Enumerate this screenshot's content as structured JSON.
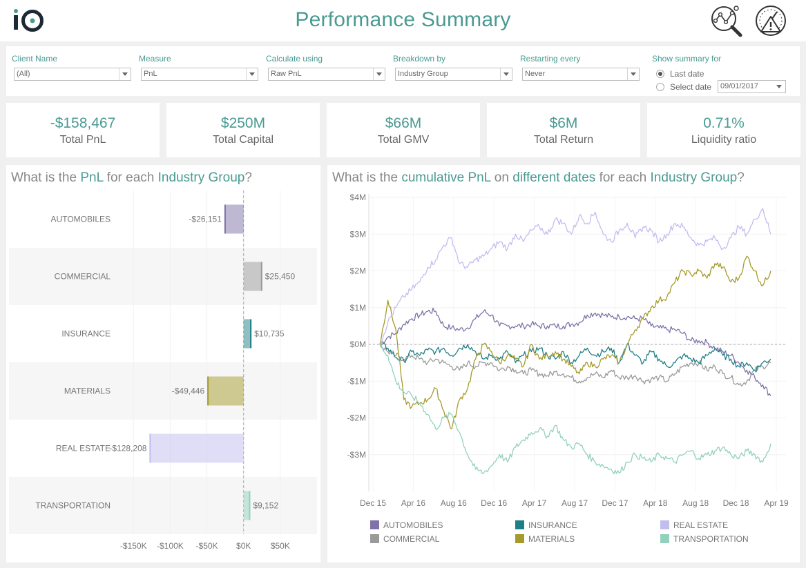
{
  "header": {
    "logo_text": "iO",
    "title": "Performance Summary",
    "icons": [
      "analytics-search-icon",
      "gauge-alert-icon"
    ]
  },
  "filters": {
    "client_name": {
      "label": "Client Name",
      "value": "(All)"
    },
    "measure": {
      "label": "Measure",
      "value": "PnL"
    },
    "calculate_using": {
      "label": "Calculate using",
      "value": "Raw PnL"
    },
    "breakdown_by": {
      "label": "Breakdown by",
      "value": "Industry Group"
    },
    "restarting_every": {
      "label": "Restarting every",
      "value": "Never"
    },
    "show_summary": {
      "label": "Show summary for",
      "option_last": "Last date",
      "option_select": "Select date",
      "date_value": "09/01/2017",
      "selected": "last"
    }
  },
  "kpis": [
    {
      "value": "-$158,467",
      "label": "Total PnL"
    },
    {
      "value": "$250M",
      "label": "Total Capital"
    },
    {
      "value": "$66M",
      "label": "Total GMV"
    },
    {
      "value": "$6M",
      "label": "Total Return"
    },
    {
      "value": "0.71%",
      "label": "Liquidity ratio"
    }
  ],
  "bar_panel": {
    "title_parts": [
      "What is the ",
      "PnL",
      " for each ",
      "Industry Group",
      "?"
    ]
  },
  "line_panel": {
    "title_parts": [
      "What is the ",
      "cumulative PnL",
      " on ",
      "different dates",
      " for each ",
      "Industry Group",
      "?"
    ]
  },
  "colors": {
    "AUTOMOBILES": "#7e72a8",
    "COMMERCIAL": "#9a9a9a",
    "INSURANCE": "#1f7f86",
    "MATERIALS": "#a69a2b",
    "REAL ESTATE": "#c2bdf0",
    "TRANSPORTATION": "#93d1bd"
  },
  "chart_data": [
    {
      "type": "bar",
      "orientation": "horizontal",
      "categories": [
        "AUTOMOBILES",
        "COMMERCIAL",
        "INSURANCE",
        "MATERIALS",
        "REAL ESTATE",
        "TRANSPORTATION"
      ],
      "values": [
        -26151,
        25450,
        10735,
        -49446,
        -128208,
        9152
      ],
      "value_labels": [
        "-$26,151",
        "$25,450",
        "$10,735",
        "-$49,446",
        "-$128,208",
        "$9,152"
      ],
      "xticks": [
        -150000,
        -100000,
        -50000,
        0,
        50000
      ],
      "xtick_labels": [
        "-$150K",
        "-$100K",
        "-$50K",
        "$0K",
        "$50K"
      ],
      "xlim": [
        -170000,
        100000
      ]
    },
    {
      "type": "line",
      "x_range": [
        "2015-12",
        "2019-04"
      ],
      "xticks": [
        "Dec 15",
        "Apr 16",
        "Aug 16",
        "Dec 16",
        "Apr 17",
        "Aug 17",
        "Dec 17",
        "Apr 18",
        "Aug 18",
        "Dec 18",
        "Apr 19"
      ],
      "ylim": [
        -4,
        4
      ],
      "yticks": [
        4,
        3,
        2,
        1,
        0,
        -1,
        -2,
        -3
      ],
      "ytick_labels": [
        "$4M",
        "$3M",
        "$2M",
        "$1M",
        "$0M",
        "-$1M",
        "-$2M",
        "-$3M"
      ],
      "y_unit": "$M",
      "legend": [
        "AUTOMOBILES",
        "INSURANCE",
        "REAL ESTATE",
        "COMMERCIAL",
        "MATERIALS",
        "TRANSPORTATION"
      ],
      "series": [
        {
          "name": "AUTOMOBILES",
          "values": [
            0.0,
            0.2,
            0.3,
            0.55,
            0.7,
            0.8,
            0.9,
            0.9,
            0.5,
            0.45,
            0.4,
            0.45,
            0.7,
            0.9,
            0.8,
            0.5,
            0.5,
            0.5,
            0.5,
            0.55,
            0.5,
            0.5,
            0.5,
            0.5,
            0.55,
            0.6,
            0.8,
            0.85,
            0.8,
            0.75,
            0.75,
            0.75,
            0.7,
            0.7,
            0.5,
            0.45,
            0.4,
            0.4,
            0.3,
            0.1,
            0.1,
            0.05,
            -0.1,
            -0.2,
            -0.3,
            -0.5,
            -0.7,
            -0.9,
            -1.1,
            -1.4
          ]
        },
        {
          "name": "COMMERCIAL",
          "values": [
            0.0,
            -0.2,
            -0.3,
            -0.4,
            -0.3,
            -0.4,
            -0.5,
            -0.4,
            -0.5,
            -0.6,
            -0.7,
            -0.5,
            -0.6,
            -0.5,
            -0.5,
            -0.7,
            -0.6,
            -0.7,
            -0.8,
            -0.7,
            -0.8,
            -0.85,
            -0.75,
            -0.8,
            -0.9,
            -1.0,
            -0.9,
            -0.8,
            -0.9,
            -0.7,
            -0.9,
            -0.9,
            -0.85,
            -1.0,
            -0.95,
            -0.9,
            -1.0,
            -0.8,
            -0.6,
            -0.5,
            -0.5,
            -0.7,
            -0.6,
            -0.8,
            -0.9,
            -1.1,
            -1.0,
            -0.7,
            -0.6,
            -0.5
          ]
        },
        {
          "name": "INSURANCE",
          "values": [
            0.0,
            -0.1,
            -0.35,
            -0.45,
            -0.2,
            -0.3,
            -0.15,
            -0.2,
            -0.1,
            -0.3,
            -0.1,
            0.0,
            -0.2,
            -0.4,
            -0.3,
            -0.4,
            -0.2,
            -0.5,
            -0.3,
            -0.2,
            -0.1,
            -0.3,
            -0.4,
            -0.2,
            -0.5,
            -0.3,
            -0.1,
            -0.3,
            -0.2,
            -0.1,
            -0.5,
            0.0,
            -0.3,
            -0.5,
            -0.2,
            -0.4,
            -0.6,
            -0.5,
            -0.3,
            -0.4,
            -0.5,
            -0.3,
            -0.1,
            -0.3,
            -0.4,
            -0.6,
            -0.5,
            -0.7,
            -0.5,
            -0.4
          ]
        },
        {
          "name": "MATERIALS",
          "values": [
            0.0,
            1.2,
            0.4,
            -1.5,
            -1.7,
            -1.6,
            -1.5,
            -1.2,
            -1.8,
            -2.3,
            -1.5,
            -1.2,
            -0.4,
            0.0,
            -0.2,
            -0.5,
            -0.3,
            -0.4,
            -0.6,
            0.0,
            -0.4,
            -0.3,
            -0.2,
            -0.4,
            -0.6,
            -0.8,
            -0.5,
            -0.6,
            -0.4,
            -0.3,
            -0.5,
            0.0,
            0.4,
            0.7,
            1.0,
            1.2,
            1.3,
            1.7,
            2.0,
            1.9,
            2.0,
            1.8,
            2.2,
            2.1,
            1.7,
            1.8,
            2.4,
            2.0,
            1.6,
            2.0
          ]
        },
        {
          "name": "REAL ESTATE",
          "values": [
            0.0,
            0.6,
            1.0,
            1.3,
            1.5,
            1.7,
            2.1,
            2.3,
            2.7,
            2.9,
            2.2,
            2.1,
            2.3,
            2.4,
            2.6,
            2.8,
            2.6,
            3.0,
            2.8,
            3.1,
            3.2,
            3.0,
            3.4,
            3.3,
            3.0,
            3.5,
            3.3,
            3.6,
            3.0,
            2.8,
            3.1,
            3.3,
            2.9,
            3.2,
            3.1,
            2.8,
            3.0,
            3.3,
            3.2,
            2.9,
            2.7,
            2.8,
            2.9,
            2.6,
            2.9,
            3.2,
            3.0,
            3.4,
            3.7,
            3.0
          ]
        },
        {
          "name": "TRANSPORTATION",
          "values": [
            0.0,
            -0.3,
            -1.0,
            -1.3,
            -1.4,
            -1.6,
            -1.9,
            -2.3,
            -2.0,
            -1.9,
            -2.4,
            -3.0,
            -3.4,
            -3.5,
            -3.3,
            -3.0,
            -3.2,
            -2.8,
            -2.6,
            -2.4,
            -2.3,
            -2.5,
            -2.2,
            -2.6,
            -2.8,
            -2.7,
            -3.0,
            -3.2,
            -3.3,
            -3.4,
            -3.5,
            -3.2,
            -3.0,
            -3.1,
            -3.2,
            -3.0,
            -3.1,
            -3.2,
            -3.0,
            -2.9,
            -3.1,
            -3.0,
            -2.9,
            -2.8,
            -3.0,
            -3.1,
            -2.9,
            -3.0,
            -3.2,
            -2.7
          ]
        }
      ]
    }
  ]
}
